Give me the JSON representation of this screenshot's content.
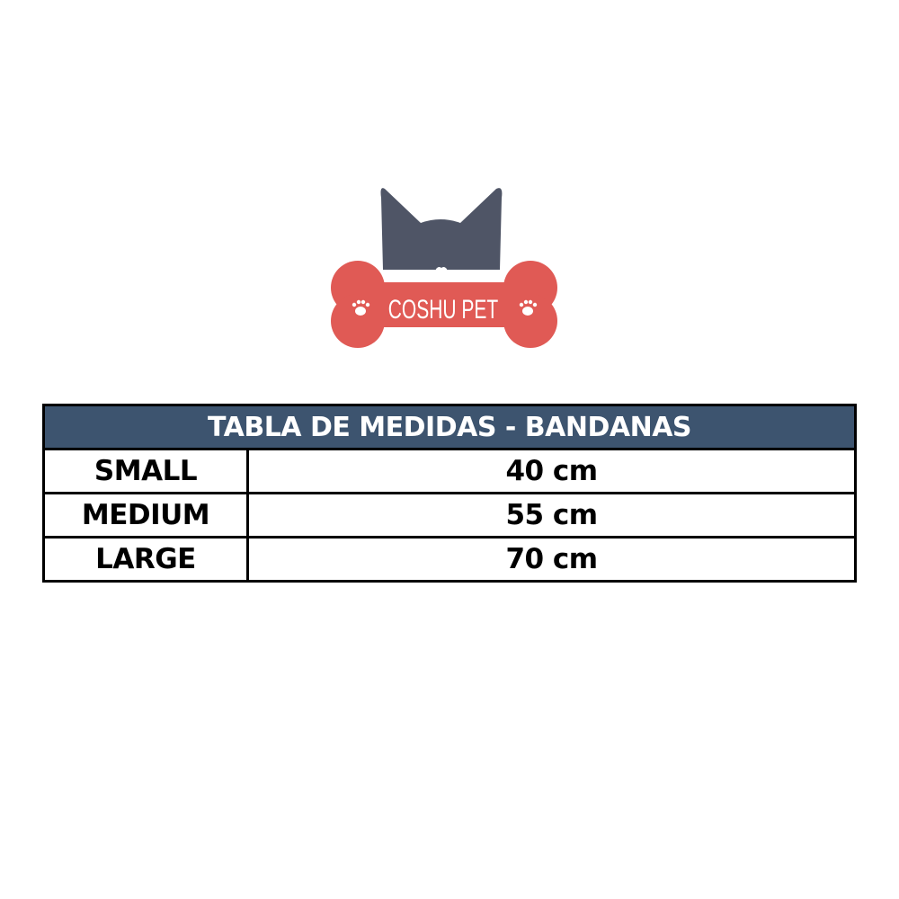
{
  "logo": {
    "text": "COSHU PET",
    "colors": {
      "dog": "#4f5566",
      "bone": "#e05a55"
    }
  },
  "table": {
    "title": "TABLA DE MEDIDAS - BANDANAS",
    "header_color": "#3d546f",
    "rows": [
      {
        "size": "SMALL",
        "measure": "40 cm"
      },
      {
        "size": "MEDIUM",
        "measure": "55 cm"
      },
      {
        "size": "LARGE",
        "measure": "70 cm"
      }
    ]
  }
}
